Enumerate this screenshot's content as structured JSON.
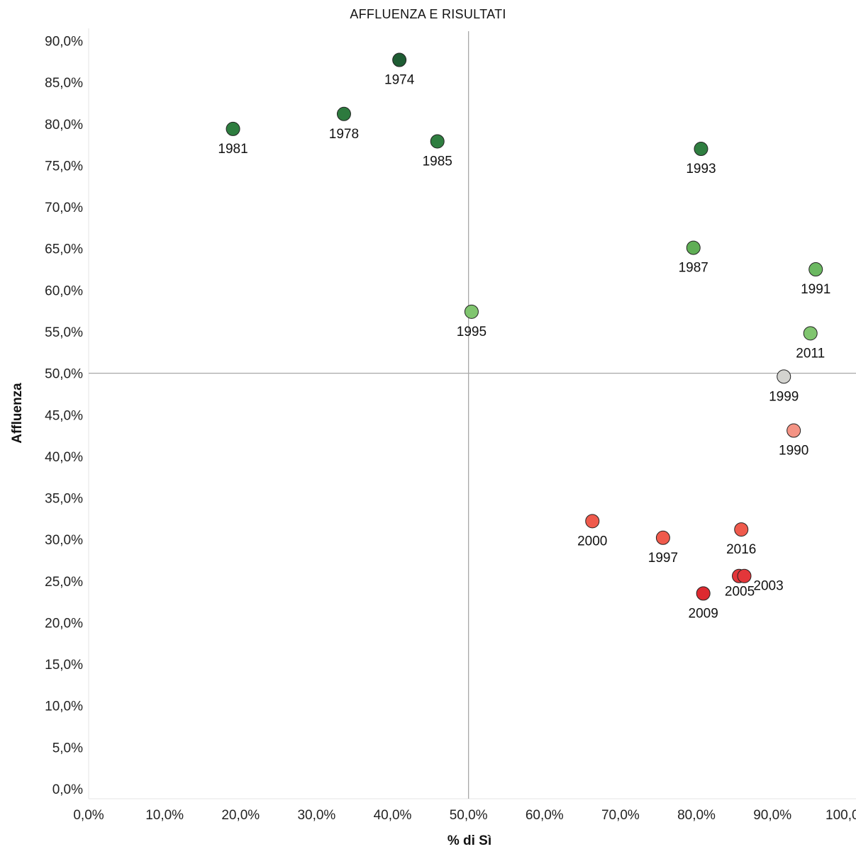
{
  "chart_data": {
    "type": "scatter",
    "title": "AFFLUENZA E RISULTATI",
    "xlabel": "% di Sì",
    "ylabel": "Affluenza",
    "xlim": [
      0,
      101
    ],
    "ylim": [
      -1.2,
      91.5
    ],
    "x_ticks": [
      0,
      10,
      20,
      30,
      40,
      50,
      60,
      70,
      80,
      90,
      100
    ],
    "x_tick_labels": [
      "0,0%",
      "10,0%",
      "20,0%",
      "30,0%",
      "40,0%",
      "50,0%",
      "60,0%",
      "70,0%",
      "80,0%",
      "90,0%",
      "100,0%"
    ],
    "y_ticks": [
      0,
      5,
      10,
      15,
      20,
      25,
      30,
      35,
      40,
      45,
      50,
      55,
      60,
      65,
      70,
      75,
      80,
      85,
      90
    ],
    "y_tick_labels": [
      "0,0%",
      "5,0%",
      "10,0%",
      "15,0%",
      "20,0%",
      "25,0%",
      "30,0%",
      "35,0%",
      "40,0%",
      "45,0%",
      "50,0%",
      "55,0%",
      "60,0%",
      "65,0%",
      "70,0%",
      "75,0%",
      "80,0%",
      "85,0%",
      "90,0%"
    ],
    "reference_lines": {
      "x": 50,
      "y": 50
    },
    "grid": false,
    "points": [
      {
        "label": "1974",
        "x": 40.9,
        "y": 87.7,
        "color": "#1e5c33"
      },
      {
        "label": "1978",
        "x": 33.6,
        "y": 81.2,
        "color": "#2d7a3e"
      },
      {
        "label": "1981",
        "x": 19.0,
        "y": 79.4,
        "color": "#2e7d3f"
      },
      {
        "label": "1985",
        "x": 45.9,
        "y": 77.9,
        "color": "#2f7e40"
      },
      {
        "label": "1993",
        "x": 80.6,
        "y": 77.0,
        "color": "#2f7e40"
      },
      {
        "label": "1987",
        "x": 79.6,
        "y": 65.1,
        "color": "#5fae55"
      },
      {
        "label": "1991",
        "x": 95.7,
        "y": 62.5,
        "color": "#6bb861"
      },
      {
        "label": "1995",
        "x": 50.4,
        "y": 57.4,
        "color": "#80c56f"
      },
      {
        "label": "2011",
        "x": 95.0,
        "y": 54.8,
        "color": "#80c56f"
      },
      {
        "label": "1999",
        "x": 91.5,
        "y": 49.6,
        "color": "#d3d3cf"
      },
      {
        "label": "1990",
        "x": 92.8,
        "y": 43.1,
        "color": "#f49384"
      },
      {
        "label": "2000",
        "x": 66.3,
        "y": 32.2,
        "color": "#ef5a4c"
      },
      {
        "label": "2016",
        "x": 85.9,
        "y": 31.2,
        "color": "#ef5a4c"
      },
      {
        "label": "1997",
        "x": 75.6,
        "y": 30.2,
        "color": "#ef5a4c"
      },
      {
        "label": "2005",
        "x": 85.6,
        "y": 25.6,
        "color": "#e3363a"
      },
      {
        "label": "2003",
        "x": 86.3,
        "y": 25.6,
        "color": "#e3363a"
      },
      {
        "label": "2009",
        "x": 80.9,
        "y": 23.5,
        "color": "#dd2a30"
      }
    ]
  }
}
